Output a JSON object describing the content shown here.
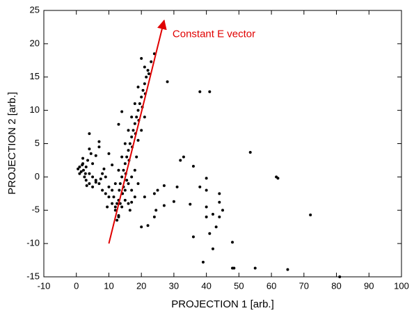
{
  "chart_data": {
    "type": "scatter",
    "x_label": "PROJECTION 1 [arb.]",
    "y_label": "PROJECTION 2 [arb.]",
    "xlim": [
      -10,
      100
    ],
    "ylim": [
      -15,
      25
    ],
    "xticks": [
      -10,
      0,
      10,
      20,
      30,
      40,
      50,
      60,
      70,
      80,
      90,
      100
    ],
    "yticks": [
      -15,
      -10,
      -5,
      0,
      5,
      10,
      15,
      20,
      25
    ],
    "color": "#000000",
    "x": [
      12,
      12.5,
      13,
      13.2,
      13.5,
      14,
      14.2,
      14.5,
      15,
      15.2,
      15.5,
      16,
      16.2,
      16.5,
      17,
      17.2,
      17.5,
      18,
      18.2,
      18.5,
      19,
      19.2,
      19.5,
      20,
      20.3,
      20.5,
      21,
      21.2,
      21.5,
      22,
      22.3,
      23,
      24,
      20,
      21,
      19,
      18,
      17,
      16,
      15,
      14,
      13,
      12,
      11.5,
      11,
      12,
      13,
      14,
      15,
      16,
      17,
      15,
      16,
      17,
      18,
      18.5,
      19,
      20,
      21,
      17,
      16.5,
      18,
      19,
      15.5,
      14.5,
      13.5,
      10,
      9,
      8,
      7,
      6,
      10,
      11,
      9.5,
      13,
      12.5,
      0.5,
      1,
      1.5,
      2,
      2.2,
      2.5,
      3,
      3,
      3.5,
      4,
      4,
      5,
      5,
      1,
      2,
      1.8,
      2.8,
      4.5,
      6,
      8,
      8.5,
      9,
      7.5,
      3.2,
      4,
      4,
      7,
      7,
      13,
      10,
      14,
      11,
      6,
      5,
      28,
      38,
      41,
      33,
      32,
      36,
      53.5,
      61.5,
      62,
      72,
      40,
      40,
      44,
      44,
      45,
      42,
      40,
      40,
      43,
      44,
      41,
      42,
      48,
      39,
      48,
      48.5,
      55,
      65,
      81,
      35,
      36,
      31,
      30,
      27,
      24,
      24,
      22,
      20,
      24.5,
      25,
      21,
      27,
      38
    ],
    "y": [
      -5,
      -4,
      -3.5,
      -2,
      -1,
      0,
      -2.5,
      1,
      2,
      0.5,
      3,
      4,
      2.5,
      5,
      6,
      4.5,
      7,
      8,
      6.5,
      9,
      10,
      8.5,
      11,
      12,
      10.5,
      13,
      14,
      12.5,
      15,
      16,
      15.5,
      17.3,
      18.5,
      17.8,
      16.5,
      13.5,
      11,
      9,
      7,
      5,
      3,
      1,
      -1,
      -3,
      -2,
      -4.5,
      -5.8,
      -4.5,
      -3.5,
      -4,
      -3.8,
      -2,
      -1,
      0,
      1,
      3,
      5.5,
      7,
      9,
      -2,
      -5,
      -3,
      -1,
      -0.5,
      -1.5,
      -4,
      -3,
      -2.5,
      -2,
      -1,
      -0.5,
      -1.5,
      -4,
      -4.5,
      -6,
      -6.5,
      1.2,
      1.5,
      0.8,
      2,
      1,
      0,
      1.5,
      -0.5,
      2.5,
      0.5,
      -1,
      0,
      -1.5,
      0.5,
      2.8,
      1.8,
      0.5,
      3.5,
      -0.8,
      0.5,
      1.2,
      0,
      -0.3,
      -1.3,
      4.2,
      6.5,
      5.3,
      4.5,
      7.9,
      3.5,
      9.8,
      1.8,
      3.2,
      2,
      14.3,
      12.8,
      12.8,
      3,
      2.5,
      1.6,
      3.7,
      0,
      -0.2,
      -5.7,
      -0.2,
      -2,
      -2.5,
      -3.8,
      -5,
      -5.6,
      -4.5,
      -6,
      -7.5,
      -6,
      -8.5,
      -10.8,
      -9.8,
      -12.8,
      -13.7,
      -13.7,
      -13.7,
      -13.9,
      -15,
      -4.1,
      -9,
      -1.5,
      -3.7,
      -4.3,
      -2.5,
      -6,
      -7.3,
      -7.5,
      -5,
      -2,
      -3,
      -1.3,
      -1.5
    ],
    "annotation": {
      "text": "Constant E vector",
      "color": "#e00000",
      "x": [
        10,
        27
      ],
      "y": [
        -10,
        23.5
      ]
    }
  }
}
